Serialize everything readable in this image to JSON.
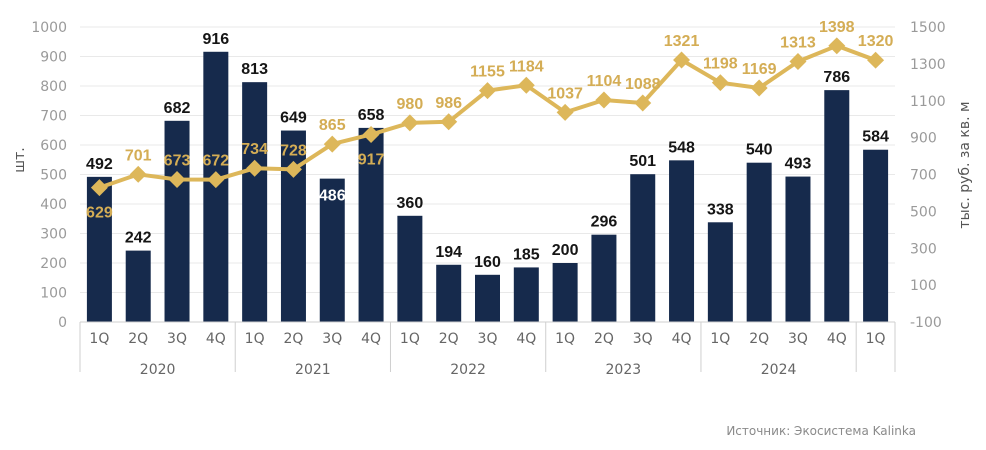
{
  "chart_data": {
    "type": "bar",
    "categories": [
      "1Q",
      "2Q",
      "3Q",
      "4Q",
      "1Q",
      "2Q",
      "3Q",
      "4Q",
      "1Q",
      "2Q",
      "3Q",
      "4Q",
      "1Q",
      "2Q",
      "3Q",
      "4Q",
      "1Q",
      "2Q",
      "3Q",
      "4Q",
      "1Q"
    ],
    "years": [
      {
        "label": "2020",
        "count": 4
      },
      {
        "label": "2021",
        "count": 4
      },
      {
        "label": "2022",
        "count": 4
      },
      {
        "label": "2023",
        "count": 4
      },
      {
        "label": "2024",
        "count": 4
      },
      {
        "label": "",
        "count": 1
      }
    ],
    "series": [
      {
        "type": "bar",
        "axis": "left",
        "values": [
          492,
          242,
          682,
          916,
          813,
          649,
          486,
          658,
          360,
          194,
          160,
          185,
          200,
          296,
          501,
          548,
          338,
          540,
          493,
          786,
          584
        ]
      },
      {
        "type": "line",
        "axis": "right",
        "values": [
          629,
          701,
          673,
          672,
          734,
          728,
          865,
          917,
          980,
          986,
          1155,
          1184,
          1037,
          1104,
          1088,
          1321,
          1198,
          1169,
          1313,
          1398,
          1320
        ]
      }
    ],
    "ylabel_left": "шт.",
    "ylabel_right": "тыс. руб. за кв. м",
    "ylim_left": [
      0,
      1000
    ],
    "yticks_left": [
      0,
      100,
      200,
      300,
      400,
      500,
      600,
      700,
      800,
      900,
      1000
    ],
    "ylim_right": [
      -100,
      1500
    ],
    "yticks_right": [
      -100,
      100,
      300,
      500,
      700,
      900,
      1100,
      1300,
      1500
    ],
    "grid": true,
    "colors": {
      "bar": "#162a4c",
      "line": "#ddb75a",
      "bar_label": "#151515",
      "bar_label_inside": "#ffffff",
      "line_label": "#d4ad55",
      "grid": "#e9e9e9",
      "axis": "#cfcfcf"
    }
  },
  "source": "Источник: Экосистема Kalinka"
}
